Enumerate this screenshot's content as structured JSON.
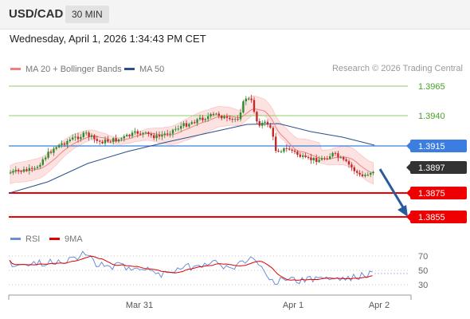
{
  "header": {
    "symbol": "USD/CAD",
    "timeframe": "30 MIN"
  },
  "timestamp": "Wednesday, April 1, 2026 1:34:43 PM CET",
  "legend": {
    "items": [
      {
        "label": "MA 20 + Bollinger Bands",
        "color": "#f08080"
      },
      {
        "label": "MA 50",
        "color": "#2a4f8c"
      }
    ]
  },
  "copyright": "Research © 2026 Trading Central",
  "price_levels": [
    {
      "value": "1.3965",
      "kind": "resistance-thin",
      "color": "#8fcf6a",
      "text_color": "#4aa12a"
    },
    {
      "value": "1.3940",
      "kind": "resistance-thin",
      "color": "#8fcf6a",
      "text_color": "#4aa12a"
    },
    {
      "value": "1.3915",
      "kind": "pivot",
      "color": "#3b7de0",
      "text_color": "#ffffff"
    },
    {
      "value": "1.3897",
      "kind": "last-price",
      "color": "#333333",
      "text_color": "#ffffff"
    },
    {
      "value": "1.3875",
      "kind": "support",
      "color": "#ee0000",
      "text_color": "#ffffff"
    },
    {
      "value": "1.3855",
      "kind": "support",
      "color": "#ee0000",
      "text_color": "#ffffff"
    }
  ],
  "rsi_legend": {
    "items": [
      {
        "label": "RSI",
        "color": "#6a8fd8"
      },
      {
        "label": "9MA",
        "color": "#e00000"
      }
    ]
  },
  "rsi_levels": [
    "70",
    "50",
    "30"
  ],
  "x_axis_labels": [
    "Mar 31",
    "Apr 1",
    "Apr 2"
  ],
  "colors": {
    "candle_up": "#2e8b2e",
    "candle_down": "#c62828",
    "band_fill": "#fde2e2",
    "ma20": "#f08080",
    "ma50": "#2a4f8c",
    "arrow": "#2a5a9e"
  }
}
